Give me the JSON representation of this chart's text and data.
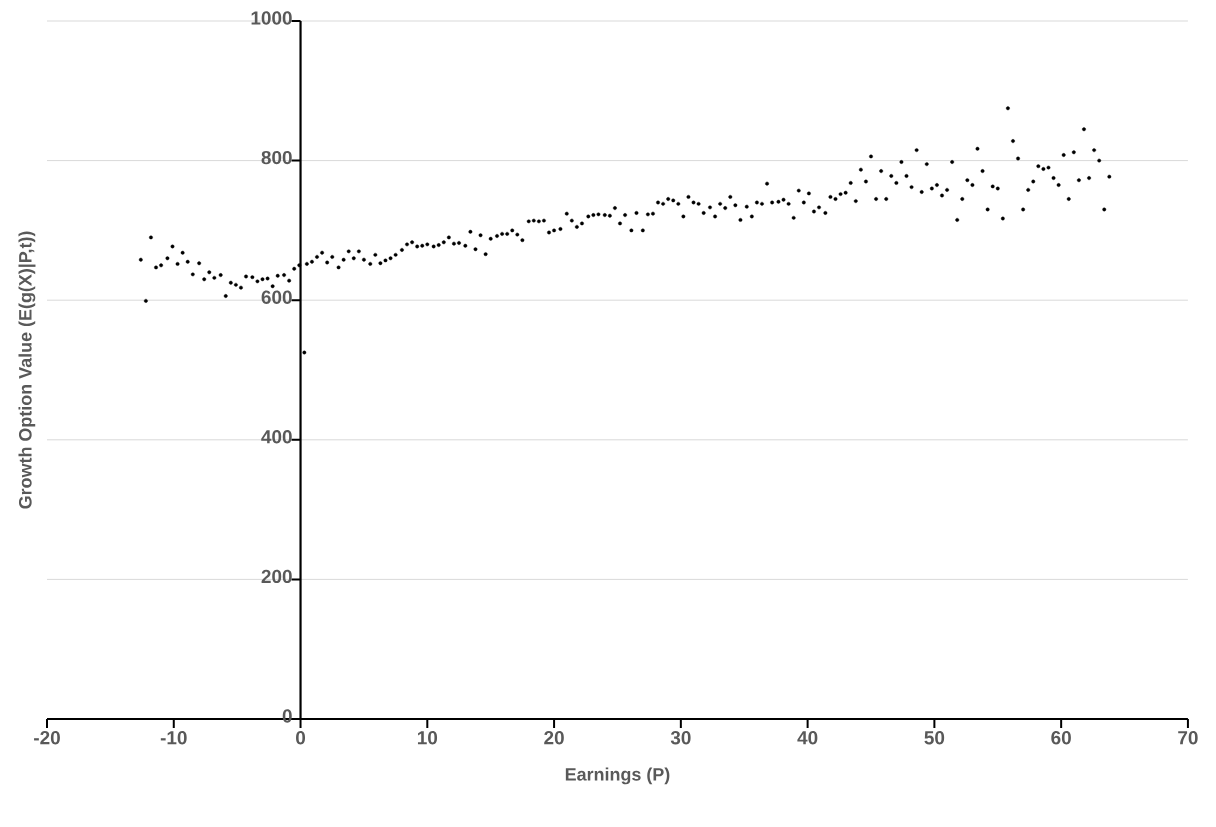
{
  "chart_data": {
    "type": "scatter",
    "xlabel": "Earnings (P)",
    "ylabel": "Growth Option Value (E(g(X)|P,t))",
    "x": [
      -12.6,
      -12.2,
      -11.8,
      -11.4,
      -11,
      -10.5,
      -10.1,
      -9.7,
      -9.3,
      -8.9,
      -8.5,
      -8.0,
      -7.6,
      -7.2,
      -6.8,
      -6.3,
      -5.9,
      -5.5,
      -5.1,
      -4.7,
      -4.3,
      -3.8,
      -3.4,
      -3,
      -2.6,
      -2.2,
      -1.8,
      -1.3,
      -0.9,
      -0.5,
      -0.1,
      0.3,
      0.5,
      0.9,
      1.3,
      1.7,
      2.1,
      2.5,
      3,
      3.4,
      3.8,
      4.2,
      4.6,
      5,
      5.5,
      5.9,
      6.3,
      6.7,
      7.1,
      7.5,
      8,
      8.4,
      8.8,
      9.2,
      9.6,
      10,
      10.5,
      10.9,
      11.3,
      11.7,
      12.1,
      12.5,
      13,
      13.4,
      13.8,
      14.2,
      14.6,
      15,
      15.5,
      15.9,
      16.3,
      16.7,
      17.1,
      17.5,
      18,
      18.4,
      18.8,
      19.2,
      19.6,
      20,
      20.5,
      21,
      21.4,
      21.8,
      22.2,
      22.7,
      23.1,
      23.5,
      24,
      24.4,
      24.8,
      25.2,
      25.6,
      26.1,
      26.5,
      27,
      27.4,
      27.8,
      28.2,
      28.6,
      29,
      29.4,
      29.8,
      30.2,
      30.6,
      31,
      31.4,
      31.8,
      32.3,
      32.7,
      33.1,
      33.5,
      33.9,
      34.3,
      34.7,
      35.2,
      35.6,
      36,
      36.4,
      36.8,
      37.2,
      37.7,
      38.1,
      38.5,
      38.9,
      39.3,
      39.7,
      40.1,
      40.5,
      40.9,
      41.4,
      41.8,
      42.2,
      42.6,
      43,
      43.4,
      43.8,
      44.2,
      44.6,
      45,
      45.4,
      45.8,
      46.2,
      46.6,
      47,
      47.4,
      47.8,
      48.2,
      48.6,
      49,
      49.4,
      49.8,
      50.2,
      50.6,
      51,
      51.4,
      51.8,
      52.2,
      52.6,
      53,
      53.4,
      53.8,
      54.2,
      54.6,
      55,
      55.4,
      55.8,
      56.2,
      56.6,
      57,
      57.4,
      57.8,
      58.2,
      58.6,
      59,
      59.4,
      59.8,
      60.2,
      60.6,
      61,
      61.4,
      61.8,
      62.2,
      62.6,
      63,
      63.4,
      63.8
    ],
    "values": [
      658,
      599,
      690,
      647,
      650,
      660,
      677,
      652,
      668,
      655,
      637,
      653,
      630,
      640,
      632,
      636,
      606,
      625,
      622,
      618,
      634,
      633,
      627,
      630,
      631,
      620,
      635,
      636,
      628,
      645,
      650,
      525,
      652,
      655,
      662,
      668,
      654,
      662,
      647,
      658,
      670,
      660,
      670,
      658,
      652,
      665,
      653,
      657,
      660,
      665,
      672,
      680,
      683,
      677,
      678,
      680,
      677,
      679,
      683,
      690,
      681,
      682,
      678,
      698,
      673,
      693,
      666,
      688,
      692,
      695,
      695,
      700,
      694,
      686,
      713,
      714,
      713,
      714,
      697,
      700,
      702,
      724,
      714,
      705,
      710,
      720,
      722,
      723,
      722,
      721,
      732,
      710,
      722,
      700,
      725,
      700,
      723,
      724,
      740,
      738,
      745,
      743,
      738,
      720,
      748,
      740,
      738,
      725,
      733,
      720,
      738,
      732,
      748,
      736,
      715,
      734,
      720,
      740,
      738,
      767,
      740,
      741,
      744,
      738,
      718,
      757,
      740,
      753,
      727,
      733,
      725,
      748,
      745,
      752,
      754,
      768,
      742,
      787,
      770,
      806,
      745,
      785,
      745,
      778,
      768,
      798,
      778,
      762,
      815,
      755,
      795,
      760,
      765,
      750,
      758,
      798,
      715,
      745,
      772,
      765,
      817,
      785,
      730,
      763,
      760,
      717,
      875,
      828,
      803,
      730,
      758,
      770,
      792,
      788,
      790,
      775,
      765,
      808,
      745,
      812,
      772,
      845,
      775,
      815,
      800,
      730,
      777
    ],
    "color": "#000000",
    "marker": "circle",
    "grid": "y",
    "xlim": [
      -20,
      70
    ],
    "ylim": [
      0,
      1000
    ],
    "xticks": [
      -20,
      -10,
      0,
      10,
      20,
      30,
      40,
      50,
      60,
      70
    ],
    "yticks": [
      0,
      200,
      400,
      600,
      800,
      1000
    ]
  }
}
